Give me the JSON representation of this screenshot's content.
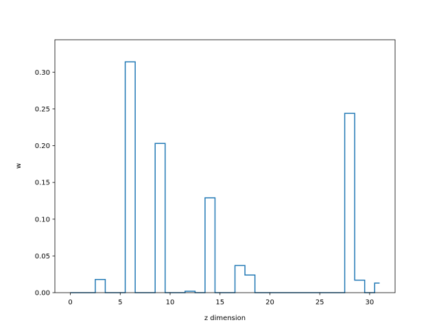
{
  "chart_data": {
    "type": "step",
    "title": "",
    "xlabel": "z dimension",
    "ylabel": "w",
    "xlim": [
      -1.55,
      32.55
    ],
    "ylim": [
      0,
      0.3441
    ],
    "x_ticks": [
      0,
      5,
      10,
      15,
      20,
      25,
      30
    ],
    "y_ticks": [
      0.0,
      0.05,
      0.1,
      0.15,
      0.2,
      0.25,
      0.3
    ],
    "x_tick_labels": [
      "0",
      "5",
      "10",
      "15",
      "20",
      "25",
      "30"
    ],
    "y_tick_labels": [
      "0.00",
      "0.05",
      "0.10",
      "0.15",
      "0.20",
      "0.25",
      "0.30"
    ],
    "grid": false,
    "line_color": "#1f77b4",
    "step_where": "mid",
    "x": [
      0,
      1,
      2,
      3,
      4,
      5,
      6,
      7,
      8,
      9,
      10,
      11,
      12,
      13,
      14,
      15,
      16,
      17,
      18,
      19,
      20,
      21,
      22,
      23,
      24,
      25,
      26,
      27,
      28,
      29,
      30,
      31
    ],
    "values": [
      0,
      0,
      0,
      0.018,
      0,
      0,
      0.314,
      0,
      0,
      0.203,
      0,
      0,
      0.002,
      0,
      0.129,
      0,
      0,
      0.037,
      0.024,
      0,
      0,
      0,
      0,
      0,
      0,
      0,
      0,
      0,
      0.244,
      0.017,
      0,
      0.013
    ]
  }
}
